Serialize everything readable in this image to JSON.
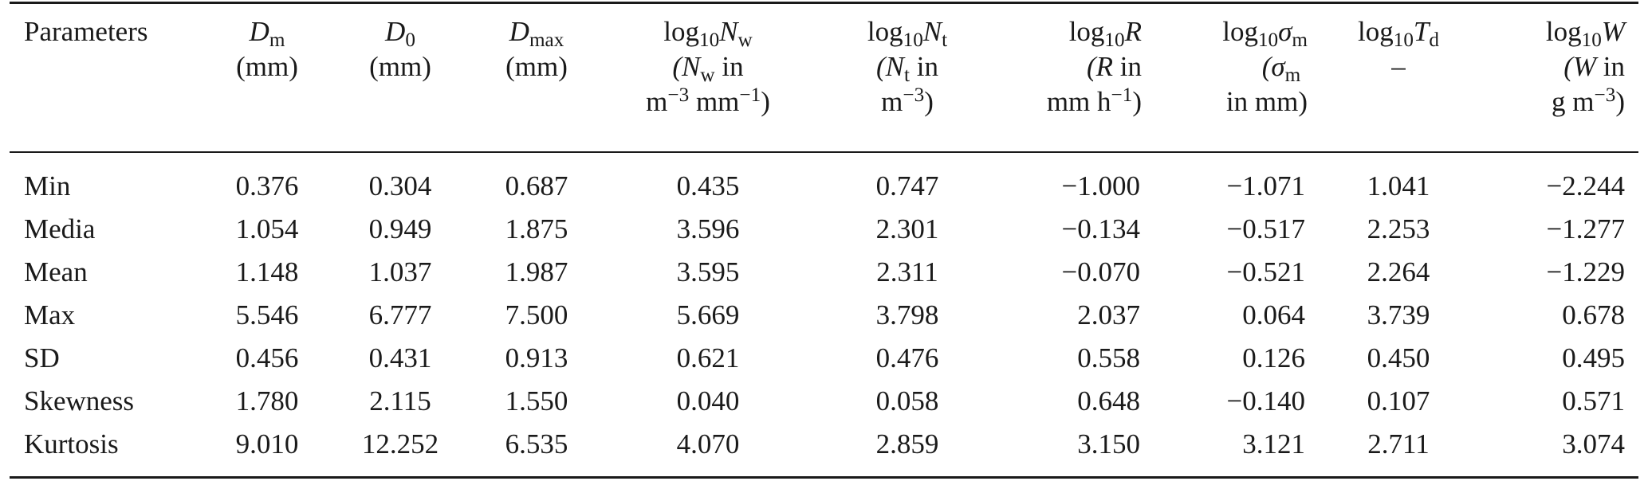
{
  "table": {
    "headers": {
      "parameters": "Parameters",
      "dm": {
        "sym": "D",
        "sub": "m",
        "unit": "(mm)"
      },
      "d0": {
        "sym": "D",
        "sub": "0",
        "unit": "(mm)"
      },
      "dmax": {
        "sym": "D",
        "sub": "max",
        "unit": "(mm)"
      },
      "nw": {
        "log": "log",
        "logsub": "10",
        "sym": "N",
        "sub": "w",
        "u1": "(N",
        "u1sub": "w",
        "u1b": " in",
        "u2": "m",
        "u2sup": "−3",
        "u2b": " mm",
        "u2sup2": "−1",
        "u2c": ")"
      },
      "nt": {
        "log": "log",
        "logsub": "10",
        "sym": "N",
        "sub": "t",
        "u1": "(N",
        "u1sub": "t",
        "u1b": " in",
        "u2": "m",
        "u2sup": "−3",
        "u2c": ")"
      },
      "r": {
        "log": "log",
        "logsub": "10",
        "sym": "R",
        "u1": "(R",
        "u1b": " in",
        "u2": "mm h",
        "u2sup": "−1",
        "u2c": ")"
      },
      "sm": {
        "log": "log",
        "logsub": "10",
        "sym": "σ",
        "sub": "m",
        "u1": "(σ",
        "u1sub": "m",
        "u2": "in mm)"
      },
      "td": {
        "log": "log",
        "logsub": "10",
        "sym": "T",
        "sub": "d",
        "u1": "–"
      },
      "w": {
        "log": "log",
        "logsub": "10",
        "sym": "W",
        "u1": "(W",
        "u1b": " in",
        "u2": "g m",
        "u2sup": "−3",
        "u2c": ")"
      }
    },
    "rows": [
      {
        "label": "Min",
        "values": [
          "0.376",
          "0.304",
          "0.687",
          "0.435",
          "0.747",
          "−1.000",
          "−1.071",
          "1.041",
          "−2.244"
        ]
      },
      {
        "label": "Media",
        "values": [
          "1.054",
          "0.949",
          "1.875",
          "3.596",
          "2.301",
          "−0.134",
          "−0.517",
          "2.253",
          "−1.277"
        ]
      },
      {
        "label": "Mean",
        "values": [
          "1.148",
          "1.037",
          "1.987",
          "3.595",
          "2.311",
          "−0.070",
          "−0.521",
          "2.264",
          "−1.229"
        ]
      },
      {
        "label": "Max",
        "values": [
          "5.546",
          "6.777",
          "7.500",
          "5.669",
          "3.798",
          "2.037",
          "0.064",
          "3.739",
          "0.678"
        ]
      },
      {
        "label": "SD",
        "values": [
          "0.456",
          "0.431",
          "0.913",
          "0.621",
          "0.476",
          "0.558",
          "0.126",
          "0.450",
          "0.495"
        ]
      },
      {
        "label": "Skewness",
        "values": [
          "1.780",
          "2.115",
          "1.550",
          "0.040",
          "0.058",
          "0.648",
          "−0.140",
          "0.107",
          "0.571"
        ]
      },
      {
        "label": "Kurtosis",
        "values": [
          "9.010",
          "12.252",
          "6.535",
          "4.070",
          "2.859",
          "3.150",
          "3.121",
          "2.711",
          "3.074"
        ]
      }
    ]
  }
}
